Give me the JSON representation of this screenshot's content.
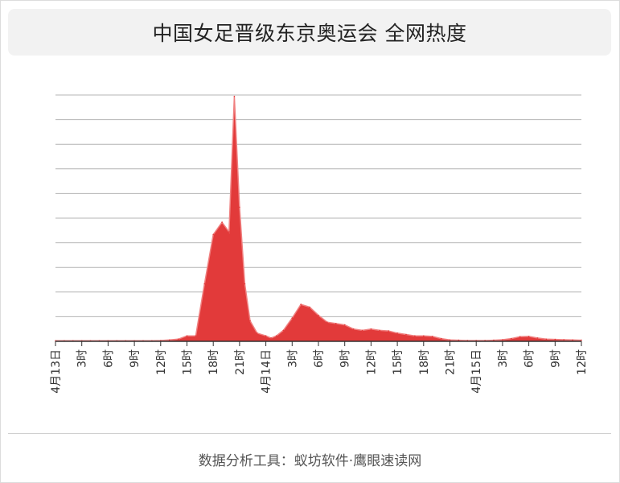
{
  "title": "中国女足晋级东京奥运会 全网热度",
  "footer": "数据分析工具：蚁坊软件·鹰眼速读网",
  "colors": {
    "area": "#e23a3a",
    "area_stroke": "#f08080",
    "grid": "#b4b4b4",
    "axis": "#333333"
  },
  "chart_data": {
    "type": "area",
    "title": "中国女足晋级东京奥运会 全网热度",
    "xlabel": "",
    "ylabel": "",
    "grid": true,
    "legend": "none",
    "x_tick_labels": [
      "4月13日",
      "3时",
      "6时",
      "9时",
      "12时",
      "15时",
      "18时",
      "21时",
      "4月14日",
      "3时",
      "6时",
      "9时",
      "12时",
      "15时",
      "18时",
      "21时",
      "4月15日",
      "3时",
      "6时",
      "9时",
      "12时"
    ],
    "y_units": "relative heat (unlabeled axis; full gridline span = 9)",
    "ylim": [
      0,
      9
    ],
    "series": [
      {
        "x": [
          "0:00",
          "1:00",
          "2:00",
          "3:00",
          "4:00",
          "5:00",
          "6:00",
          "7:00",
          "8:00",
          "9:00",
          "10:00",
          "11:00",
          "12:00",
          "13:00",
          "14:00",
          "15:00",
          "16:00",
          "17:00",
          "18:00",
          "19:00",
          "19:48",
          "20:24",
          "21:00",
          "21:36",
          "22:12",
          "23:00",
          "+1 0:00",
          "+1 0:36",
          "+1 1:12",
          "+1 2:00",
          "+1 3:00",
          "+1 4:00",
          "+1 5:00",
          "+1 6:00",
          "+1 7:00",
          "+1 8:00",
          "+1 9:00",
          "+1 10:00",
          "+1 11:00",
          "+1 12:00",
          "+1 13:00",
          "+1 14:00",
          "+1 15:00",
          "+1 16:00",
          "+1 17:00",
          "+1 18:00",
          "+1 19:00",
          "+1 20:00",
          "+1 21:00",
          "+1 22:00",
          "+1 23:00",
          "+2 0:00",
          "+2 1:00",
          "+2 2:00",
          "+2 3:00",
          "+2 4:00",
          "+2 5:00",
          "+2 6:00",
          "+2 7:00",
          "+2 8:00",
          "+2 9:00",
          "+2 10:00",
          "+2 11:00",
          "+2 12:00"
        ],
        "values": [
          0.02,
          0.02,
          0.02,
          0.02,
          0.02,
          0.02,
          0.02,
          0.02,
          0.02,
          0.02,
          0.02,
          0.02,
          0.03,
          0.05,
          0.08,
          0.2,
          0.2,
          2.1,
          3.9,
          4.35,
          4.0,
          8.95,
          4.9,
          2.1,
          0.75,
          0.3,
          0.2,
          0.12,
          0.2,
          0.4,
          0.85,
          1.35,
          1.25,
          0.95,
          0.7,
          0.65,
          0.6,
          0.45,
          0.4,
          0.45,
          0.4,
          0.38,
          0.3,
          0.25,
          0.2,
          0.2,
          0.18,
          0.1,
          0.05,
          0.04,
          0.03,
          0.03,
          0.03,
          0.04,
          0.06,
          0.1,
          0.17,
          0.18,
          0.12,
          0.08,
          0.07,
          0.06,
          0.05,
          0.04
        ]
      }
    ]
  }
}
